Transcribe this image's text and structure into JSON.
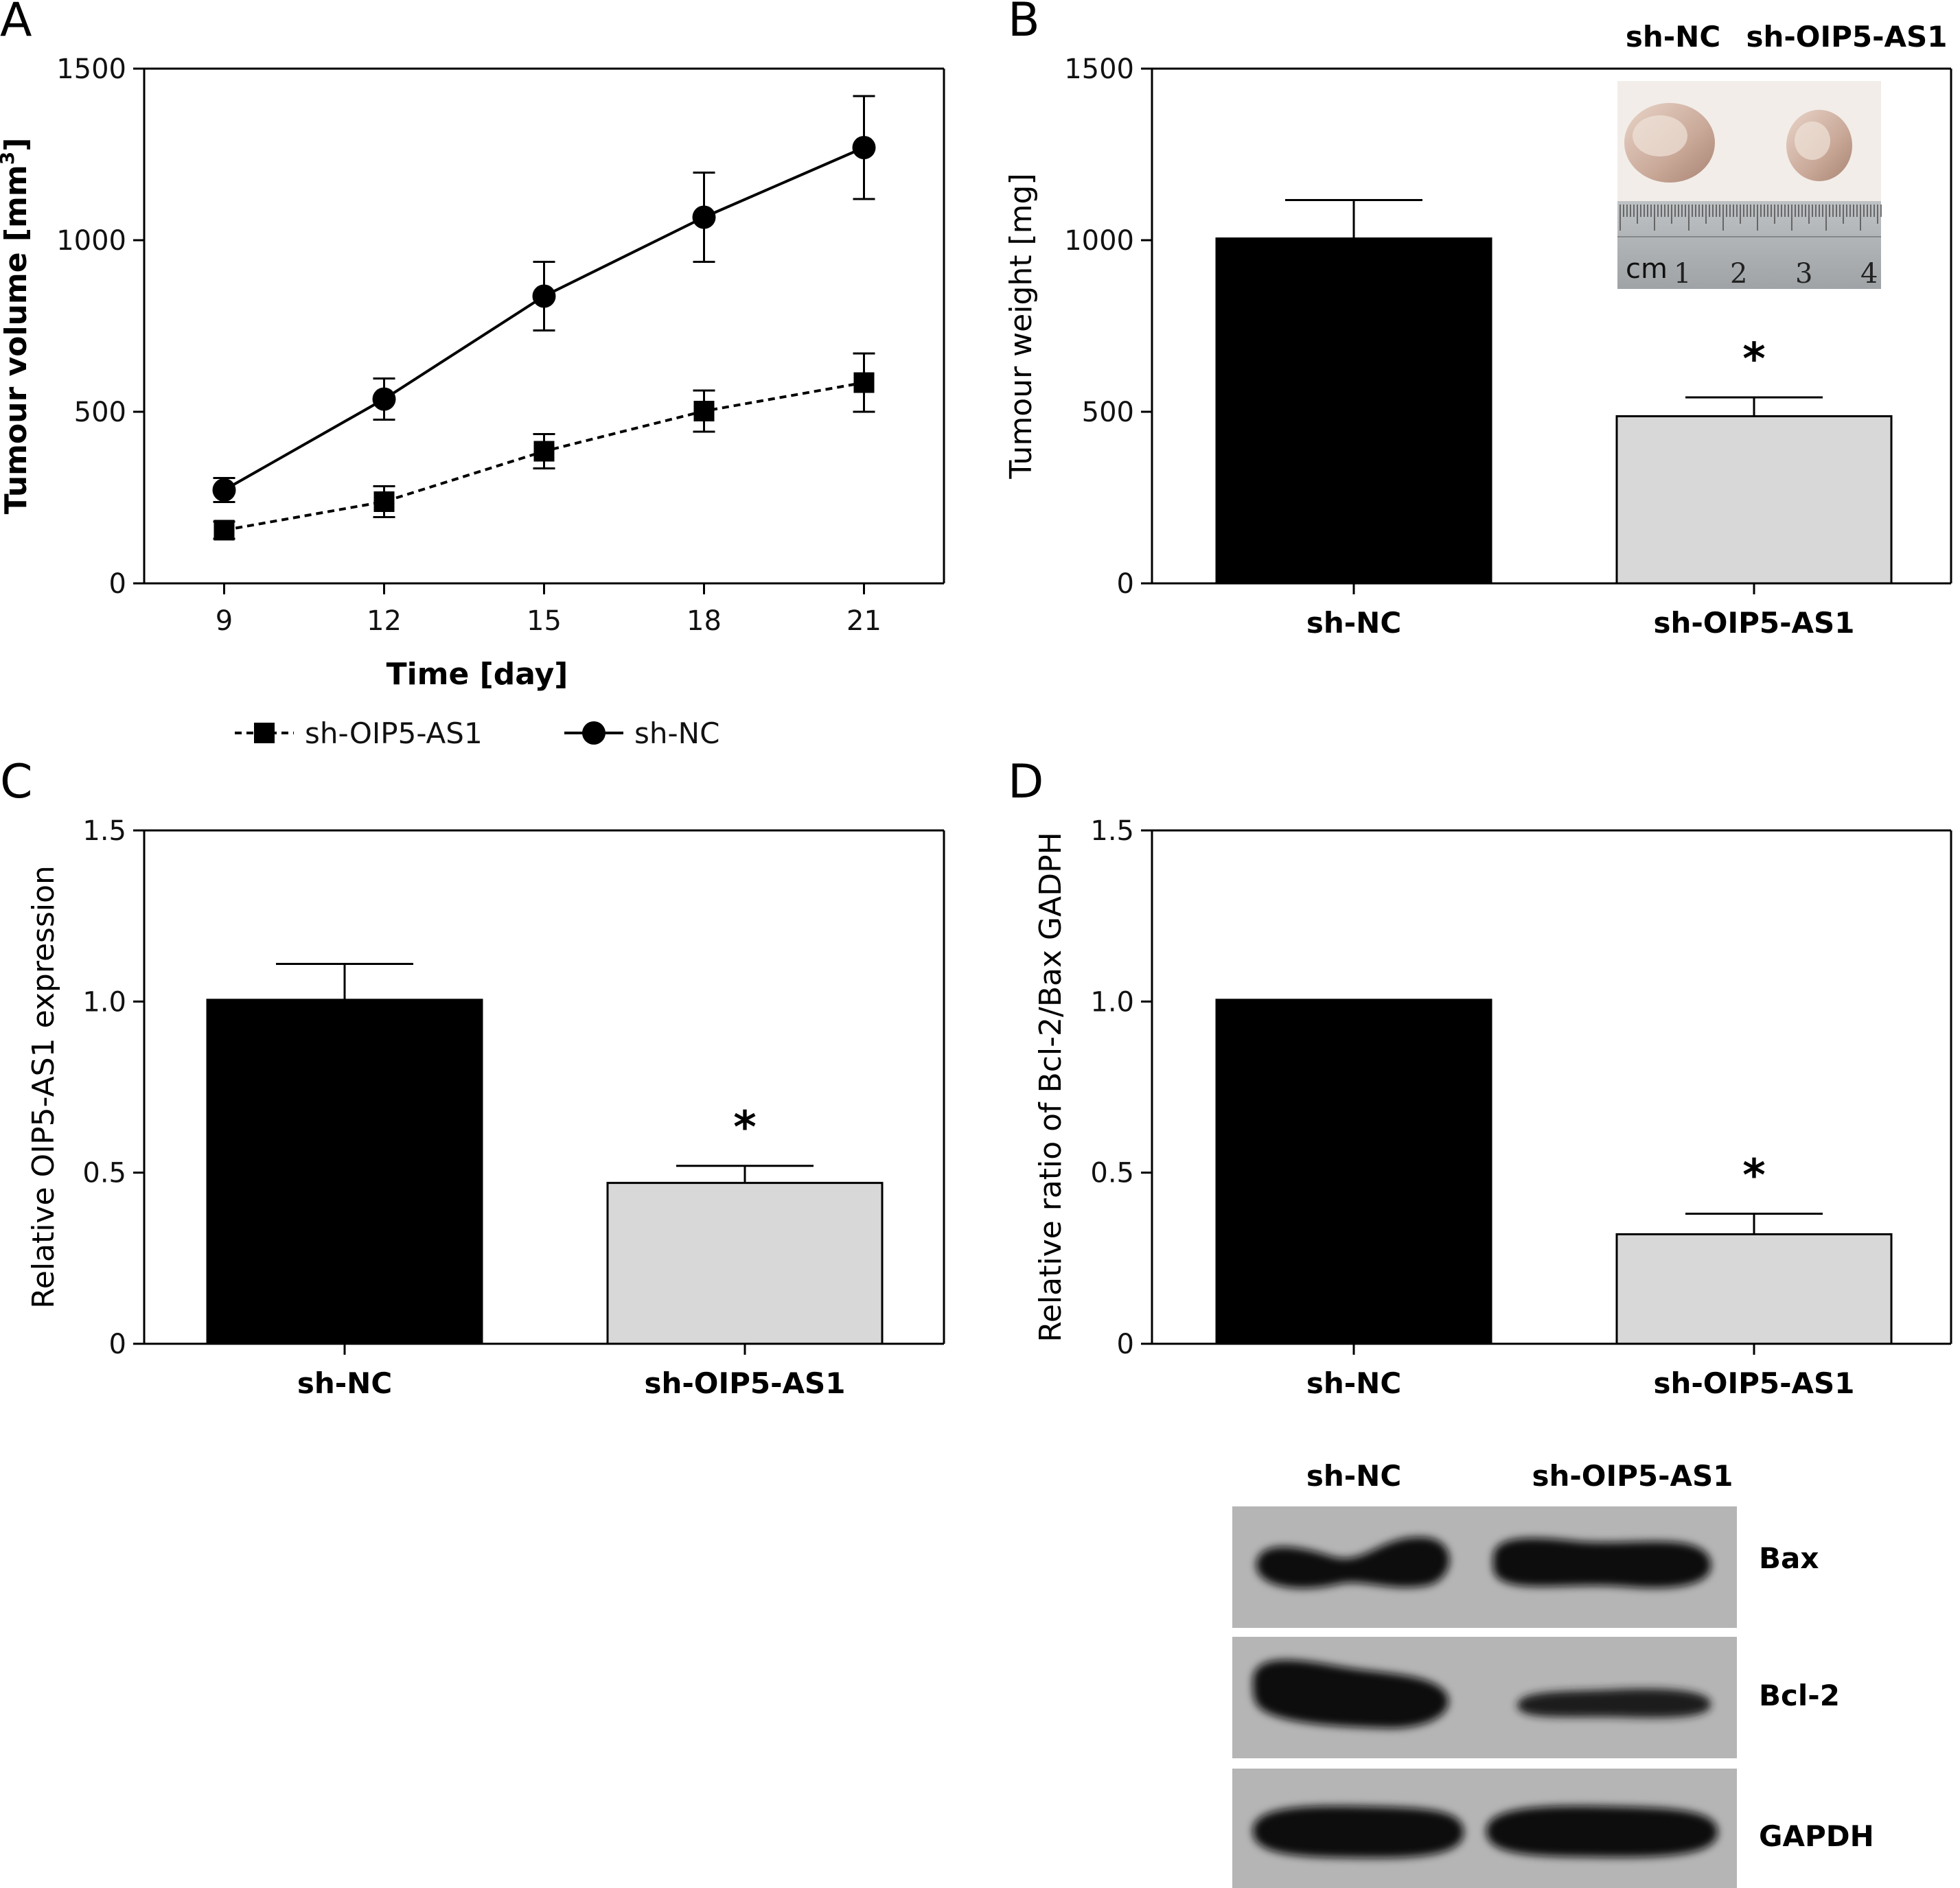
{
  "panels": {
    "A": "A",
    "B": "B",
    "C": "C",
    "D": "D"
  },
  "chart_data": [
    {
      "panel": "A",
      "type": "line",
      "xlabel": "Time [day]",
      "ylabel": "Tumour volume [mm",
      "ylabel_sup": "3",
      "ylabel_end": "]",
      "x": [
        9,
        12,
        15,
        18,
        21
      ],
      "xlim": [
        7.5,
        22.5
      ],
      "ylim": [
        0,
        1500
      ],
      "yticks": [
        0,
        500,
        1000,
        1500
      ],
      "series": [
        {
          "name": "sh-OIP5-AS1",
          "values": [
            155,
            238,
            385,
            502,
            585
          ],
          "errors": [
            25,
            45,
            50,
            60,
            85
          ],
          "marker": "square",
          "line": "dashed"
        },
        {
          "name": "sh-NC",
          "values": [
            272,
            537,
            837,
            1067,
            1270
          ],
          "errors": [
            35,
            60,
            100,
            130,
            150
          ],
          "marker": "circle",
          "line": "solid"
        }
      ],
      "legend": "bottom"
    },
    {
      "panel": "B",
      "type": "bar",
      "categories": [
        "sh-NC",
        "sh-OIP5-AS1"
      ],
      "values": [
        1005,
        487
      ],
      "errors": [
        112,
        55
      ],
      "colors": [
        "#000000",
        "#d8d8d8"
      ],
      "ylabel": "Tumour weight [mg]",
      "ylim": [
        0,
        1500
      ],
      "yticks": [
        0,
        500,
        1000,
        1500
      ],
      "significance": [
        "",
        "*"
      ],
      "inset": {
        "labels": [
          "sh-NC",
          "sh-OIP5-AS1"
        ],
        "ruler_marks": [
          "cm",
          "1",
          "2",
          "3",
          "4"
        ]
      }
    },
    {
      "panel": "C",
      "type": "bar",
      "categories": [
        "sh-NC",
        "sh-OIP5-AS1"
      ],
      "values": [
        1.005,
        0.47
      ],
      "errors": [
        0.105,
        0.05
      ],
      "colors": [
        "#000000",
        "#d8d8d8"
      ],
      "ylabel": "Relative OIP5-AS1 expression",
      "ylim": [
        0,
        1.5
      ],
      "yticks": [
        "0",
        "0.5",
        "1.0",
        "1.5"
      ],
      "significance": [
        "",
        "*"
      ]
    },
    {
      "panel": "D",
      "type": "bar",
      "categories": [
        "sh-NC",
        "sh-OIP5-AS1"
      ],
      "values": [
        1.005,
        0.32
      ],
      "errors": [
        0,
        0.06
      ],
      "colors": [
        "#000000",
        "#d8d8d8"
      ],
      "ylabel": "Relative ratio of Bcl-2/Bax GADPH",
      "ylim": [
        0,
        1.5
      ],
      "yticks": [
        "0",
        "0.5",
        "1.0",
        "1.5"
      ],
      "significance": [
        "",
        "*"
      ],
      "blot": {
        "lanes": [
          "sh-NC",
          "sh-OIP5-AS1"
        ],
        "rows": [
          "Bax",
          "Bcl-2",
          "GAPDH"
        ]
      }
    }
  ]
}
